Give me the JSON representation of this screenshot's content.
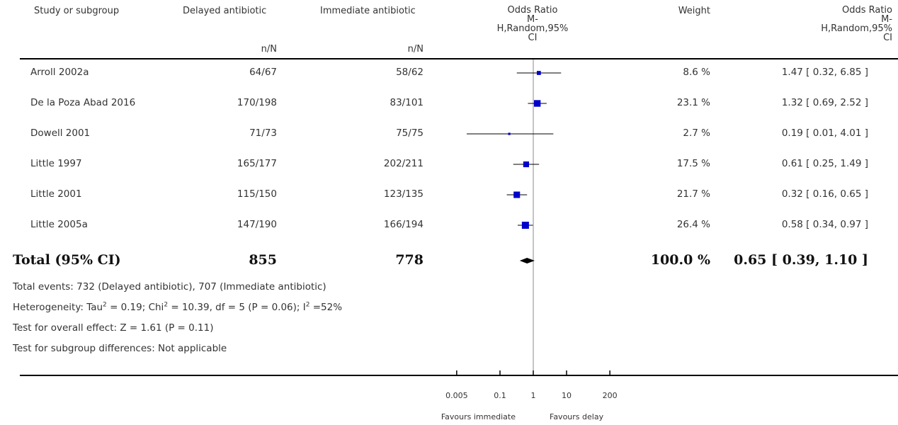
{
  "chart_data": {
    "type": "forest",
    "columns": {
      "study": "Study or subgroup",
      "delayed": "Delayed antibiotic",
      "immediate": "Immediate antibiotic",
      "n_label": "n/N",
      "or_plot_lines": [
        "Odds Ratio",
        "M-",
        "H,Random,95%",
        "CI"
      ],
      "weight": "Weight",
      "or_text_lines": [
        "Odds Ratio",
        "M-",
        "H,Random,95%",
        "CI"
      ]
    },
    "studies": [
      {
        "name": "Arroll 2002a",
        "delayed": "64/67",
        "immediate": "58/62",
        "or": 1.47,
        "lo": 0.32,
        "hi": 6.85,
        "weight": "8.6 %",
        "ci_text": "1.47 [ 0.32, 6.85 ]"
      },
      {
        "name": "De la Poza Abad 2016",
        "delayed": "170/198",
        "immediate": "83/101",
        "or": 1.32,
        "lo": 0.69,
        "hi": 2.52,
        "weight": "23.1 %",
        "ci_text": "1.32 [ 0.69, 2.52 ]"
      },
      {
        "name": "Dowell 2001",
        "delayed": "71/73",
        "immediate": "75/75",
        "or": 0.19,
        "lo": 0.01,
        "hi": 4.01,
        "weight": "2.7 %",
        "ci_text": "0.19 [ 0.01, 4.01 ]"
      },
      {
        "name": "Little 1997",
        "delayed": "165/177",
        "immediate": "202/211",
        "or": 0.61,
        "lo": 0.25,
        "hi": 1.49,
        "weight": "17.5 %",
        "ci_text": "0.61 [ 0.25, 1.49 ]"
      },
      {
        "name": "Little 2001",
        "delayed": "115/150",
        "immediate": "123/135",
        "or": 0.32,
        "lo": 0.16,
        "hi": 0.65,
        "weight": "21.7 %",
        "ci_text": "0.32 [ 0.16, 0.65 ]"
      },
      {
        "name": "Little 2005a",
        "delayed": "147/190",
        "immediate": "166/194",
        "or": 0.58,
        "lo": 0.34,
        "hi": 0.97,
        "weight": "26.4 %",
        "ci_text": "0.58 [ 0.34, 0.97 ]"
      }
    ],
    "total": {
      "label": "Total (95% CI)",
      "delayed": "855",
      "immediate": "778",
      "or": 0.65,
      "lo": 0.39,
      "hi": 1.1,
      "weight": "100.0 %",
      "ci_text": "0.65 [ 0.39, 1.10 ]"
    },
    "footnotes": {
      "events": "Total events: 732 (Delayed antibiotic), 707 (Immediate antibiotic)",
      "het_a": "Heterogeneity: Tau",
      "het_b": " = 0.19; Chi",
      "het_c": " = 10.39, df = 5 (P = 0.06); I",
      "het_d": " =52%",
      "sup2": "2",
      "overall": "Test for overall effect: Z = 1.61 (P = 0.11)",
      "subgroup": "Test for subgroup differences: Not applicable"
    },
    "axis": {
      "scale": "log",
      "ticks": [
        0.005,
        0.1,
        1,
        10,
        200
      ],
      "tick_labels": [
        "0.005",
        "0.1",
        "1",
        "10",
        "200"
      ],
      "left_label": "Favours immediate",
      "right_label": "Favours delay"
    },
    "colors": {
      "marker": "#0000cc",
      "line": "#000000",
      "null_line": "#888888"
    }
  }
}
